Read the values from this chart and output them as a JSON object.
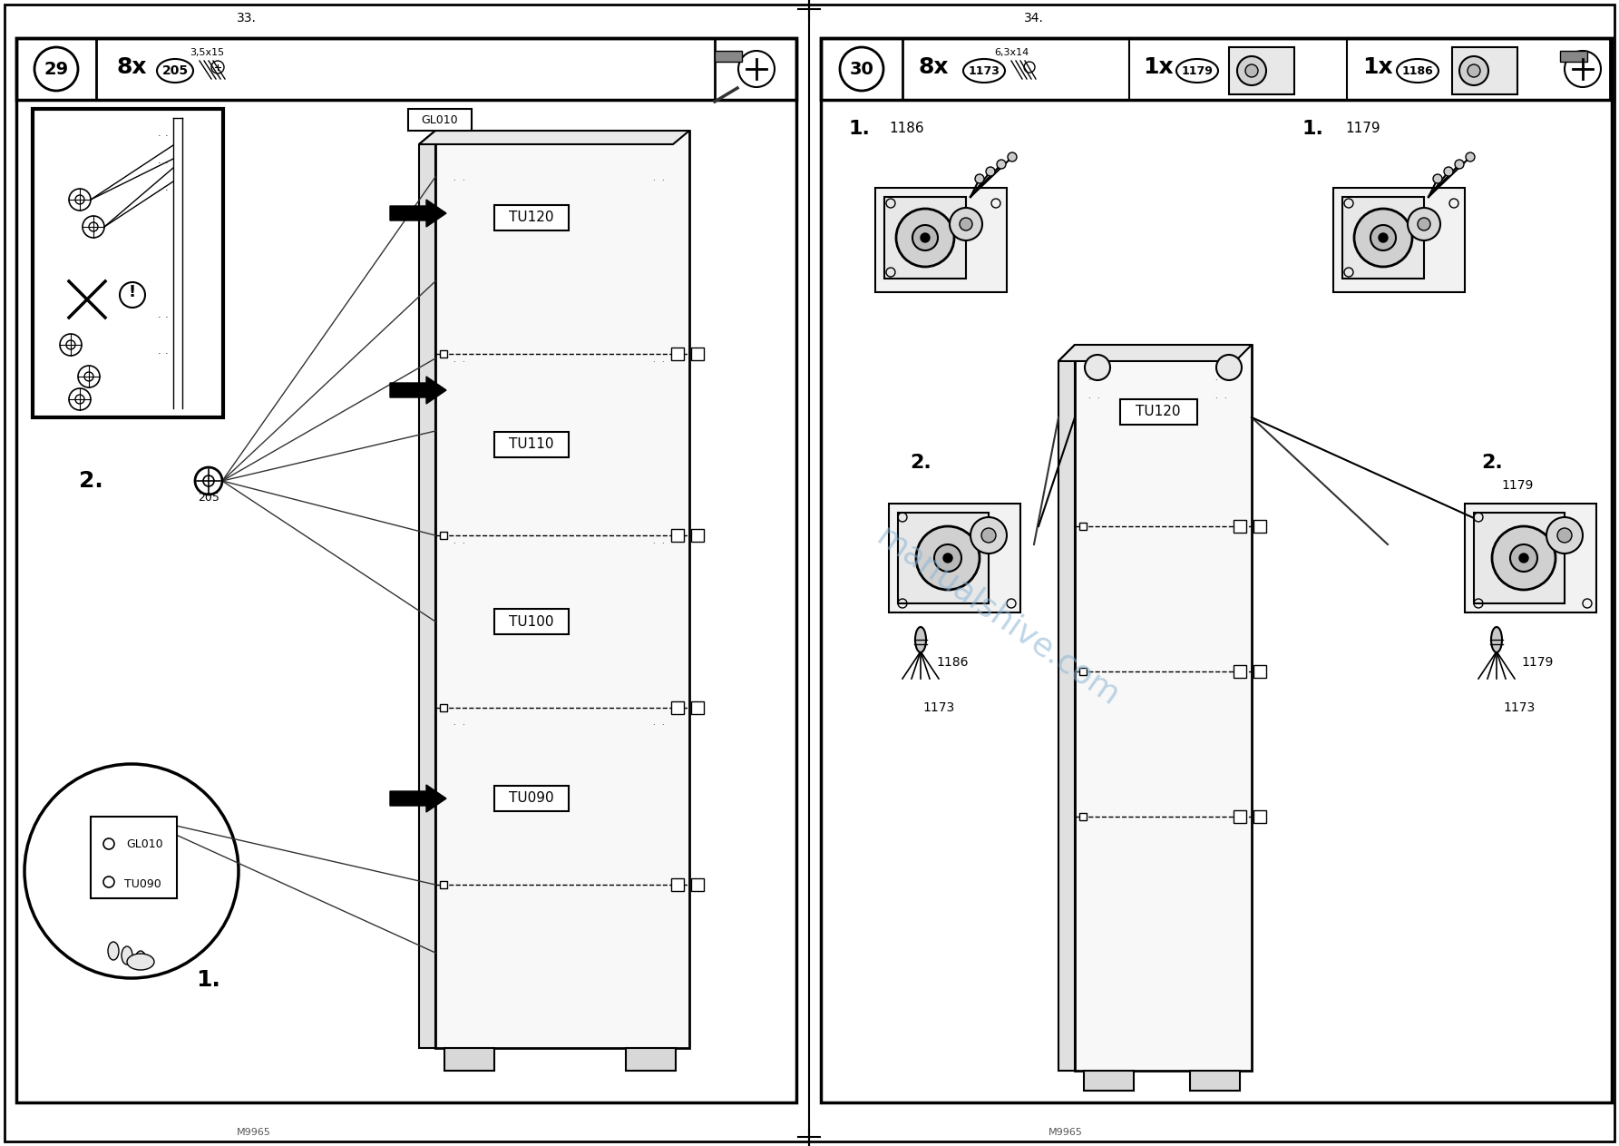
{
  "page_bg": "#ffffff",
  "page_border_color": "#000000",
  "watermark_color": "#8ab4d4",
  "watermark_text": "manualshive.com",
  "page_numbers": [
    "33.",
    "34."
  ],
  "bottom_labels": [
    "M9965",
    "M9965"
  ],
  "left": {
    "step": "29",
    "qty": "8x",
    "part_num": "205",
    "screw_size": "3,5x15",
    "board_labels": [
      "TU120",
      "TU110",
      "TU100",
      "TU090"
    ],
    "step2_num": "205",
    "circle_labels": [
      "GL010",
      "TU090"
    ]
  },
  "right": {
    "step": "30",
    "hw1_qty": "8x",
    "hw1_num": "1173",
    "hw1_size": "6,3x14",
    "hw2_qty": "1x",
    "hw2_num": "1179",
    "hw3_qty": "1x",
    "hw3_num": "1186",
    "board_label": "TU120",
    "step1_labels": [
      "1186",
      "1179"
    ],
    "step2_left_labels": [
      "1186",
      "1173"
    ],
    "step2_right_labels": [
      "1179",
      "1173"
    ]
  }
}
